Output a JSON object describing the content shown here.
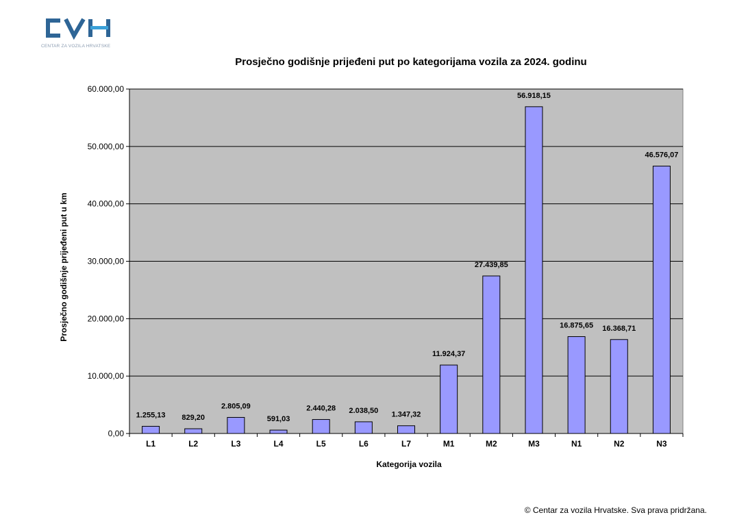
{
  "logo": {
    "text": "CVH",
    "subtitle": "CENTAR ZA VOZILA HRVATSKE"
  },
  "footer": "© Centar za vozila Hrvatske. Sva prava pridržana.",
  "colors": {
    "bar": "#9999ff",
    "plot_bg": "#c0c0c0",
    "logo": "#2e6596",
    "logo_bar": "#3aa0d8"
  },
  "chart_data": {
    "type": "bar",
    "title": "Prosječno godišnje prijeđeni put po kategorijama vozila za 2024. godinu",
    "xlabel": "Kategorija vozila",
    "ylabel": "Prosječno godišnje prijeđeni put u km",
    "ylim": [
      0,
      60000
    ],
    "grid": true,
    "yticks": [
      0,
      10000,
      20000,
      30000,
      40000,
      50000,
      60000
    ],
    "ytick_labels": [
      "0,00",
      "10.000,00",
      "20.000,00",
      "30.000,00",
      "40.000,00",
      "50.000,00",
      "60.000,00"
    ],
    "categories": [
      "L1",
      "L2",
      "L3",
      "L4",
      "L5",
      "L6",
      "L7",
      "M1",
      "M2",
      "M3",
      "N1",
      "N2",
      "N3"
    ],
    "values": [
      1255.13,
      829.2,
      2805.09,
      591.03,
      2440.28,
      2038.5,
      1347.32,
      11924.37,
      27439.85,
      56918.15,
      16875.65,
      16368.71,
      46576.07
    ],
    "value_labels": [
      "1.255,13",
      "829,20",
      "2.805,09",
      "591,03",
      "2.440,28",
      "2.038,50",
      "1.347,32",
      "11.924,37",
      "27.439,85",
      "56.918,15",
      "16.875,65",
      "16.368,71",
      "46.576,07"
    ]
  }
}
